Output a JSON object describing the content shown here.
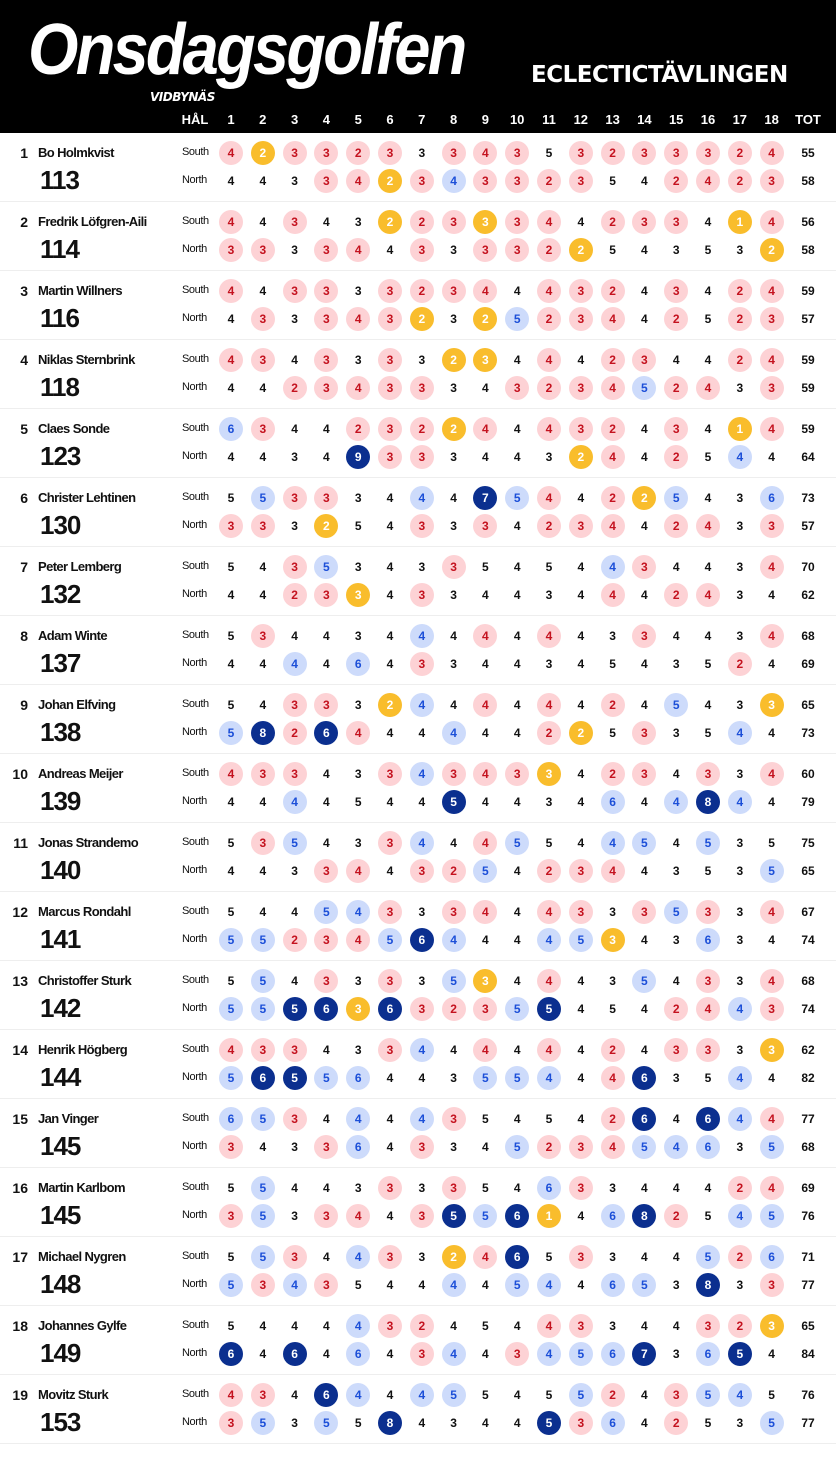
{
  "header": {
    "logo": "Onsdagsgolfen",
    "logo_sub": "VIDBYNÄS",
    "subtitle": "ECLECTICTÄVLINGEN"
  },
  "columns": {
    "hole_label": "HÅL",
    "holes": [
      "1",
      "2",
      "3",
      "4",
      "5",
      "6",
      "7",
      "8",
      "9",
      "10",
      "11",
      "12",
      "13",
      "14",
      "15",
      "16",
      "17",
      "18"
    ],
    "total_label": "TOT"
  },
  "colors": {
    "r": "#fdd2d5",
    "y": "#f9bd2c",
    "b": "#cddbfb",
    "n": "#0b2f8f"
  },
  "course_labels": [
    "South",
    "North"
  ],
  "players": [
    {
      "rank": "1",
      "name": "Bo Holmkvist",
      "total": "113",
      "south": "4r 2y 3r 3r 2r 3r 3 3r 4r 3r 5 3r 2r 3r 3r 3r 2r 4r",
      "south_tot": "55",
      "north": "4 4 3 3r 4r 2y 3r 4b 3r 3r 2r 3r 5 4 2r 4r 2r 3r",
      "north_tot": "58"
    },
    {
      "rank": "2",
      "name": "Fredrik Löfgren-Aili",
      "total": "114",
      "south": "4r 4 3r 4 3 2y 2r 3r 3y 3r 4r 4 2r 3r 3r 4 1y 4r",
      "south_tot": "56",
      "north": "3r 3r 3 3r 4r 4 3r 3 3r 3r 2r 2y 5 4 3 5 3 2y",
      "north_tot": "58"
    },
    {
      "rank": "3",
      "name": "Martin Willners",
      "total": "116",
      "south": "4r 4 3r 3r 3 3r 2r 3r 4r 4 4r 3r 2r 4 3r 4 2r 4r",
      "south_tot": "59",
      "north": "4 3r 3 3r 4r 3r 2y 3 2y 5b 2r 3r 4r 4 2r 5 2r 3r",
      "north_tot": "57"
    },
    {
      "rank": "4",
      "name": "Niklas Sternbrink",
      "total": "118",
      "south": "4r 3r 4 3r 3 3r 3 2y 3y 4 4r 4 2r 3r 4 4 2r 4r",
      "south_tot": "59",
      "north": "4 4 2r 3r 4r 3r 3r 3 4 3r 2r 3r 4r 5b 2r 4r 3 3r",
      "north_tot": "59"
    },
    {
      "rank": "5",
      "name": "Claes Sonde",
      "total": "123",
      "south": "6b 3r 4 4 2r 3r 2r 2y 4r 4 4r 3r 2r 4 3r 4 1y 4r",
      "south_tot": "59",
      "north": "4 4 3 4 9n 3r 3r 3 4 4 3 2y 4r 4 2r 5 4b 4",
      "north_tot": "64"
    },
    {
      "rank": "6",
      "name": "Christer Lehtinen",
      "total": "130",
      "south": "5 5b 3r 3r 3 4 4b 4 7n 5b 4r 4 2r 2y 5b 4 3 6b",
      "south_tot": "73",
      "north": "3r 3r 3 2y 5 4 3r 3 3r 4 2r 3r 4r 4 2r 4r 3 3r",
      "north_tot": "57"
    },
    {
      "rank": "7",
      "name": "Peter Lemberg",
      "total": "132",
      "south": "5 4 3r 5b 3 4 3 3r 5 4 5 4 4b 3r 4 4 3 4r",
      "south_tot": "70",
      "north": "4 4 2r 3r 3y 4 3r 3 4 4 3 4 4r 4 2r 4r 3 4",
      "north_tot": "62"
    },
    {
      "rank": "8",
      "name": "Adam Winte",
      "total": "137",
      "south": "5 3r 4 4 3 4 4b 4 4r 4 4r 4 3 3r 4 4 3 4r",
      "south_tot": "68",
      "north": "4 4 4b 4 6b 4 3r 3 4 4 3 4 5 4 3 5 2r 4",
      "north_tot": "69"
    },
    {
      "rank": "9",
      "name": "Johan Elfving",
      "total": "138",
      "south": "5 4 3r 3r 3 2y 4b 4 4r 4 4r 4 2r 4 5b 4 3 3y",
      "south_tot": "65",
      "north": "5b 8n 2r 6n 4r 4 4 4b 4 4 2r 2y 5 3r 3 5 4b 4",
      "north_tot": "73"
    },
    {
      "rank": "10",
      "name": "Andreas Meijer",
      "total": "139",
      "south": "4r 3r 3r 4 3 3r 4b 3r 4r 3r 3y 4 2r 3r 4 3r 3 4r",
      "south_tot": "60",
      "north": "4 4 4b 4 5 4 4 5n 4 4 3 4 6b 4 4b 8n 4b 4",
      "north_tot": "79"
    },
    {
      "rank": "11",
      "name": "Jonas Strandemo",
      "total": "140",
      "south": "5 3r 5b 4 3 3r 4b 4 4r 5b 5 4 4b 5b 4 5b 3 5",
      "south_tot": "75",
      "north": "4 4 3 3r 4r 4 3r 2r 5b 4 2r 3r 4r 4 3 5 3 5b",
      "north_tot": "65"
    },
    {
      "rank": "12",
      "name": "Marcus Rondahl",
      "total": "141",
      "south": "5 4 4 5b 4b 3r 3 3r 4r 4 4r 3r 3 3r 5b 3r 3 4r",
      "south_tot": "67",
      "north": "5b 5b 2r 3r 4r 5b 6n 4b 4 4 4b 5b 3y 4 3 6b 3 4",
      "north_tot": "74"
    },
    {
      "rank": "13",
      "name": "Christoffer Sturk",
      "total": "142",
      "south": "5 5b 4 3r 3 3r 3 5b 3y 4 4r 4 3 5b 4 3r 3 4r",
      "south_tot": "68",
      "north": "5b 5b 5n 6n 3y 6n 3r 2r 3r 5b 5n 4 5 4 2r 4r 4b 3r",
      "north_tot": "74"
    },
    {
      "rank": "14",
      "name": "Henrik Högberg",
      "total": "144",
      "south": "4r 3r 3r 4 3 3r 4b 4 4r 4 4r 4 2r 4 3r 3r 3 3y",
      "south_tot": "62",
      "north": "5b 6n 5n 5b 6b 4 4 3 5b 5b 4b 4 4r 6n 3 5 4b 4",
      "north_tot": "82"
    },
    {
      "rank": "15",
      "name": "Jan Vinger",
      "total": "145",
      "south": "6b 5b 3r 4 4b 4 4b 3r 5 4 5 4 2r 6n 4 6n 4b 4r",
      "south_tot": "77",
      "north": "3r 4 3 3r 6b 4 3r 3 4 5b 2r 3r 4r 5b 4b 6b 3 5b",
      "north_tot": "68"
    },
    {
      "rank": "16",
      "name": "Martin Karlbom",
      "total": "145",
      "south": "5 5b 4 4 3 3r 3 3r 5 4 6b 3r 3 4 4 4 2r 4r",
      "south_tot": "69",
      "north": "3r 5b 3 3r 4r 4 3r 5n 5b 6n 1y 4 6b 8n 2r 5 4b 5b",
      "north_tot": "76"
    },
    {
      "rank": "17",
      "name": "Michael Nygren",
      "total": "148",
      "south": "5 5b 3r 4 4b 3r 3 2y 4r 6n 5 3r 3 4 4 5b 2r 6b",
      "south_tot": "71",
      "north": "5b 3r 4b 3r 5 4 4 4b 4 5b 4b 4 6b 5b 3 8n 3 3r",
      "north_tot": "77"
    },
    {
      "rank": "18",
      "name": "Johannes Gylfe",
      "total": "149",
      "south": "5 4 4 4 4b 3r 2r 4 5 4 4r 3r 3 4 4 3r 2r 3y",
      "south_tot": "65",
      "north": "6n 4 6n 4 6b 4 3r 4b 4 3r 4b 5b 6b 7n 3 6b 5n 4",
      "north_tot": "84"
    },
    {
      "rank": "19",
      "name": "Movitz Sturk",
      "total": "153",
      "south": "4r 3r 4 6n 4b 4 4b 5b 5 4 5 5b 2r 4 3r 5b 4b 5",
      "south_tot": "76",
      "north": "3r 5b 3 5b 5 8n 4 3 4 4 5n 3r 6b 4 2r 5 3 5b",
      "north_tot": "77"
    }
  ]
}
